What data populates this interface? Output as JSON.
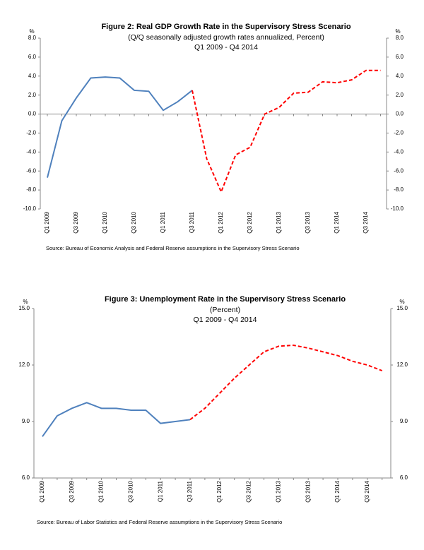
{
  "chart_data": [
    {
      "type": "line",
      "title": "Figure 2: Real GDP Growth Rate in the Supervisory Stress Scenario",
      "subtitle": "(Q/Q seasonally adjusted growth rates annualized, Percent)",
      "period": "Q1 2009 - Q4 2014",
      "y_unit": "%",
      "y2_unit": "%",
      "source": "Source: Bureau of Economic Analysis and Federal Reserve assumptions in the Supervisory Stress Scenario",
      "categories": [
        "Q1 2009",
        null,
        "Q3 2009",
        null,
        "Q1 2010",
        null,
        "Q3 2010",
        null,
        "Q1 2011",
        null,
        "Q3 2011",
        null,
        "Q1 2012",
        null,
        "Q3 2012",
        null,
        "Q1 2013",
        null,
        "Q3 2013",
        null,
        "Q1 2014",
        null,
        "Q3 2014",
        null
      ],
      "series": [
        {
          "color": "#4f81bd",
          "style": "solid",
          "values": [
            -6.7,
            -0.7,
            1.7,
            3.8,
            3.9,
            3.8,
            2.5,
            2.4,
            0.4,
            1.3,
            2.5,
            null,
            null,
            null,
            null,
            null,
            null,
            null,
            null,
            null,
            null,
            null,
            null,
            null
          ]
        },
        {
          "color": "#ff0000",
          "style": "dashed",
          "values": [
            null,
            null,
            null,
            null,
            null,
            null,
            null,
            null,
            null,
            null,
            2.5,
            -4.7,
            -8.2,
            -4.3,
            -3.5,
            0.0,
            0.7,
            2.2,
            2.3,
            3.4,
            3.3,
            3.6,
            4.6,
            4.6
          ]
        }
      ],
      "ylim": [
        -10,
        8
      ],
      "yticks": [
        {
          "value": -10,
          "label": "-10.0"
        },
        {
          "value": -8,
          "label": "-8.0"
        },
        {
          "value": -6,
          "label": "-6.0"
        },
        {
          "value": -4,
          "label": "-4.0"
        },
        {
          "value": -2,
          "label": "-2.0"
        },
        {
          "value": 0,
          "label": "0.0"
        },
        {
          "value": 2,
          "label": "2.0"
        },
        {
          "value": 4,
          "label": "4.0"
        },
        {
          "value": 6,
          "label": "6.0"
        },
        {
          "value": 8,
          "label": "8.0"
        }
      ],
      "y2lim": [
        -10,
        8
      ],
      "y2ticks": [
        {
          "value": -10,
          "label": "-10.0"
        },
        {
          "value": -8,
          "label": "-8.0"
        },
        {
          "value": -6,
          "label": "-6.0"
        },
        {
          "value": -4,
          "label": "-4.0"
        },
        {
          "value": -2,
          "label": "-2.0"
        },
        {
          "value": 0,
          "label": "0.0"
        },
        {
          "value": 2,
          "label": "2.0"
        },
        {
          "value": 4,
          "label": "4.0"
        },
        {
          "value": 6,
          "label": "6.0"
        },
        {
          "value": 8,
          "label": "8.0"
        }
      ]
    },
    {
      "type": "line",
      "title": "Figure 3: Unemployment Rate in the Supervisory Stress Scenario",
      "subtitle": "(Percent)",
      "period": "Q1 2009 - Q4 2014",
      "y_unit": "%",
      "y2_unit": "%",
      "source": "Source: Bureau of Labor Statistics and Federal Reserve assumptions in the Supervisory Stress Scenario",
      "categories": [
        "Q1 2009",
        null,
        "Q3 2009",
        null,
        "Q1 2010",
        null,
        "Q3 2010",
        null,
        "Q1 2011",
        null,
        "Q3 2011",
        null,
        "Q1 2012",
        null,
        "Q3 2012",
        null,
        "Q1 2013",
        null,
        "Q3 2013",
        null,
        "Q1 2014",
        null,
        "Q3 2014",
        null
      ],
      "series": [
        {
          "color": "#4f81bd",
          "style": "solid",
          "values": [
            8.2,
            9.3,
            9.7,
            10.0,
            9.7,
            9.7,
            9.6,
            9.6,
            8.9,
            9.0,
            9.1,
            null,
            null,
            null,
            null,
            null,
            null,
            null,
            null,
            null,
            null,
            null,
            null,
            null
          ]
        },
        {
          "color": "#ff0000",
          "style": "dashed",
          "values": [
            null,
            null,
            null,
            null,
            null,
            null,
            null,
            null,
            null,
            null,
            9.1,
            9.7,
            10.5,
            11.3,
            12.0,
            12.7,
            13.0,
            13.05,
            12.9,
            12.7,
            12.5,
            12.2,
            12.0,
            11.7
          ]
        }
      ],
      "ylim": [
        6,
        15
      ],
      "yticks": [
        {
          "value": 6,
          "label": "6.0"
        },
        {
          "value": 9,
          "label": "9.0"
        },
        {
          "value": 12,
          "label": "12.0"
        },
        {
          "value": 15,
          "label": "15.0"
        }
      ],
      "y2lim": [
        6,
        15
      ],
      "y2ticks": [
        {
          "value": 6,
          "label": "6.0"
        },
        {
          "value": 9,
          "label": "9.0"
        },
        {
          "value": 12,
          "label": "12.0"
        },
        {
          "value": 15,
          "label": "15.0"
        }
      ]
    }
  ]
}
